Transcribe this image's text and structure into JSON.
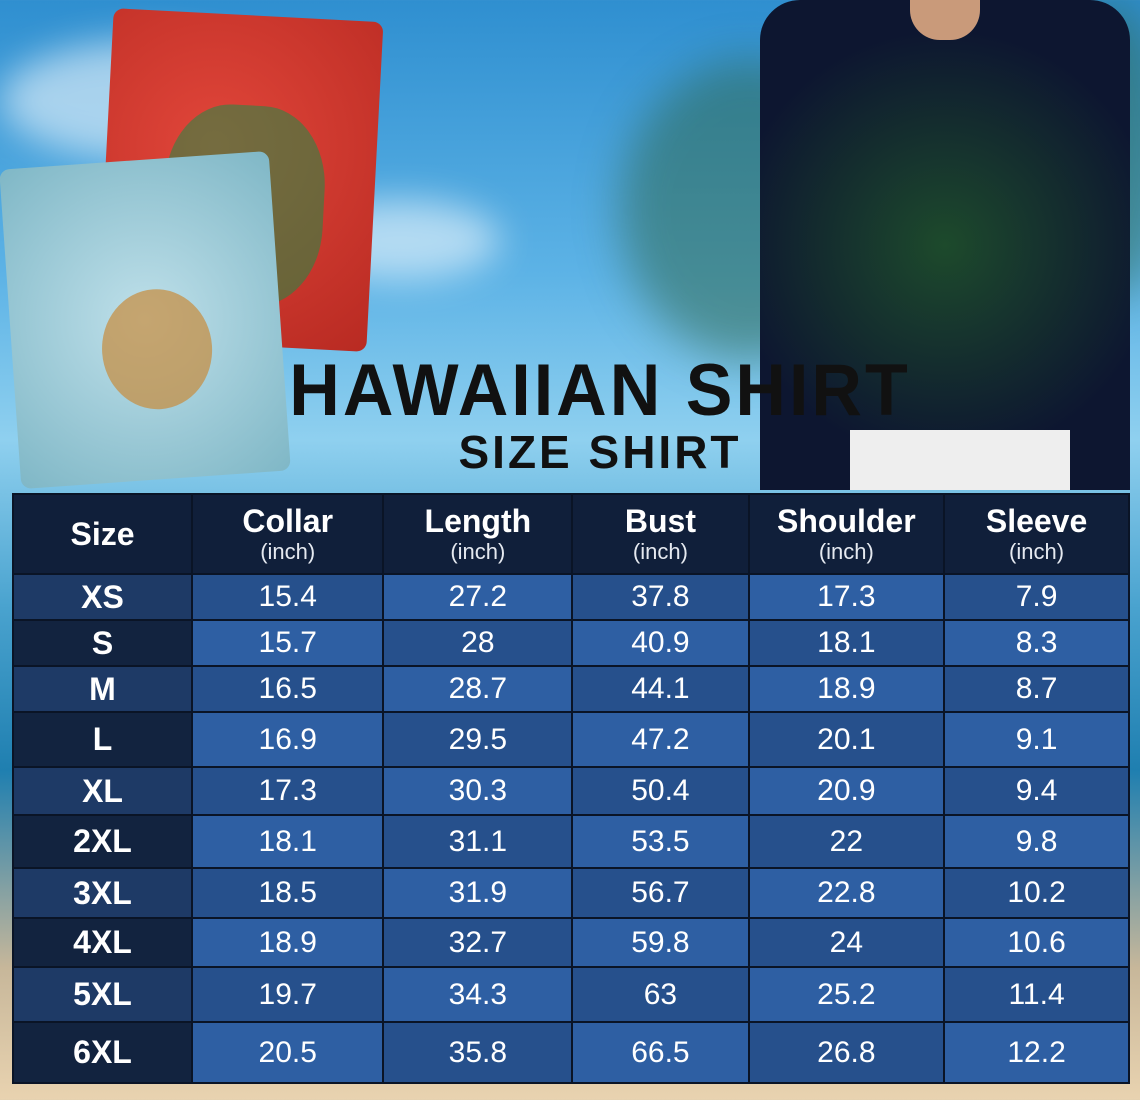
{
  "title": "HAWAIIAN SHIRT",
  "subtitle": "SIZE SHIRT",
  "colors": {
    "header_bg": "#101f3a",
    "cell_light": "#2e5fa3",
    "cell_dark": "#26508c",
    "size_col": "#12233f"
  },
  "table": {
    "headers": [
      {
        "label": "Size",
        "unit": ""
      },
      {
        "label": "Collar",
        "unit": "(inch)"
      },
      {
        "label": "Length",
        "unit": "(inch)"
      },
      {
        "label": "Bust",
        "unit": "(inch)"
      },
      {
        "label": "Shoulder",
        "unit": "(inch)"
      },
      {
        "label": "Sleeve",
        "unit": "(inch)"
      }
    ],
    "rows": [
      [
        "XS",
        "15.4",
        "27.2",
        "37.8",
        "17.3",
        "7.9"
      ],
      [
        "S",
        "15.7",
        "28",
        "40.9",
        "18.1",
        "8.3"
      ],
      [
        "M",
        "16.5",
        "28.7",
        "44.1",
        "18.9",
        "8.7"
      ],
      [
        "L",
        "16.9",
        "29.5",
        "47.2",
        "20.1",
        "9.1"
      ],
      [
        "XL",
        "17.3",
        "30.3",
        "50.4",
        "20.9",
        "9.4"
      ],
      [
        "2XL",
        "18.1",
        "31.1",
        "53.5",
        "22",
        "9.8"
      ],
      [
        "3XL",
        "18.5",
        "31.9",
        "56.7",
        "22.8",
        "10.2"
      ],
      [
        "4XL",
        "18.9",
        "32.7",
        "59.8",
        "24",
        "10.6"
      ],
      [
        "5XL",
        "19.7",
        "34.3",
        "63",
        "25.2",
        "11.4"
      ],
      [
        "6XL",
        "20.5",
        "35.8",
        "66.5",
        "26.8",
        "12.2"
      ]
    ]
  }
}
